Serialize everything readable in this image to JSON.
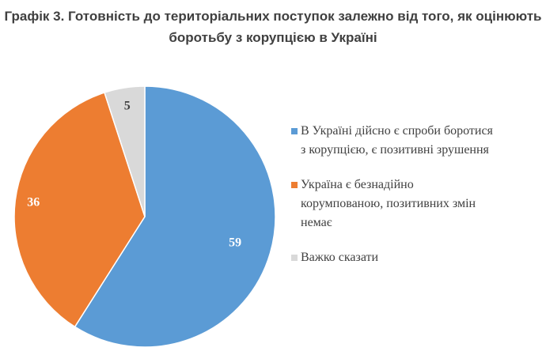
{
  "chart_data": {
    "type": "pie",
    "title": "Графік 3. Готовність до територіальних поступок залежно від того, як оцінюють боротьбу з корупцією в Україні",
    "title_lines": [
      "Графік 3. Готовність до територіальних поступок залежно від того, як оцінюють",
      "боротьбу з корупцією в Україні"
    ],
    "legend_position": "right",
    "slices": [
      {
        "label": "В Україні дійсно є спроби боротися з корупцією, є позитивні зрушення",
        "label_lines": [
          "В Україні дійсно є спроби боротися",
          "з корупцією, є позитивні зрушення"
        ],
        "value": 59,
        "value_label": "59",
        "color": "#5B9BD5",
        "label_color": "#ffffff"
      },
      {
        "label": "Україна є безнадійно корумпованою, позитивних змін немає",
        "label_lines": [
          "Україна є безнадійно",
          "корумпованою, позитивних змін",
          "немає"
        ],
        "value": 36,
        "value_label": "36",
        "color": "#ED7D31",
        "label_color": "#ffffff"
      },
      {
        "label": "Важко сказати",
        "label_lines": [
          "Важко сказати"
        ],
        "value": 5,
        "value_label": "5",
        "color": "#D9D9D9",
        "label_color": "#404040"
      }
    ]
  }
}
